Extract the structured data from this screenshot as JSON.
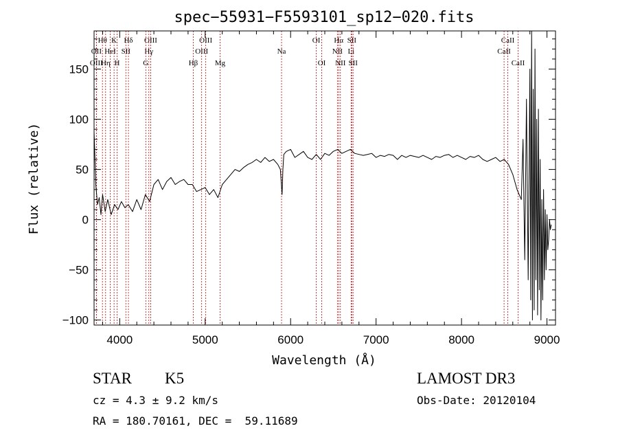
{
  "chart_data": {
    "type": "line",
    "title": "spec−55931−F5593101_sp12−020.fits",
    "xlabel": "Wavelength (Å)",
    "ylabel": "Flux (relative)",
    "xlim": [
      3700,
      9100
    ],
    "ylim": [
      -105,
      188
    ],
    "xticks": [
      4000,
      5000,
      6000,
      7000,
      8000,
      9000
    ],
    "yticks": [
      -100,
      -50,
      0,
      50,
      100,
      150
    ],
    "ytick_labels": [
      "−100",
      "−50",
      "0",
      "50",
      "100",
      "150"
    ],
    "grid": false,
    "line_color": "#000000",
    "marker_color": "#cc0000",
    "series": [
      {
        "x": [
          3700,
          3720,
          3740,
          3760,
          3780,
          3800,
          3830,
          3860,
          3900,
          3940,
          3980,
          4020,
          4060,
          4100,
          4150,
          4200,
          4250,
          4300,
          4350,
          4400,
          4450,
          4500,
          4550,
          4600,
          4650,
          4700,
          4750,
          4800,
          4850,
          4900,
          4950,
          5000,
          5050,
          5100,
          5150,
          5200,
          5250,
          5300,
          5350,
          5400,
          5450,
          5500,
          5550,
          5600,
          5650,
          5700,
          5750,
          5800,
          5850,
          5880,
          5900,
          5910,
          5920,
          5950,
          6000,
          6050,
          6100,
          6150,
          6200,
          6250,
          6300,
          6350,
          6400,
          6450,
          6500,
          6550,
          6600,
          6650,
          6700,
          6750,
          6800,
          6850,
          6900,
          6950,
          7000,
          7050,
          7100,
          7150,
          7200,
          7250,
          7300,
          7350,
          7400,
          7450,
          7500,
          7550,
          7600,
          7650,
          7700,
          7750,
          7800,
          7850,
          7900,
          7950,
          8000,
          8050,
          8100,
          8150,
          8200,
          8250,
          8300,
          8350,
          8400,
          8450,
          8500,
          8550,
          8600,
          8650,
          8700,
          8720,
          8740,
          8760,
          8780,
          8800,
          8810,
          8820,
          8830,
          8840,
          8850,
          8860,
          8870,
          8880,
          8890,
          8900,
          8910,
          8920,
          8930,
          8940,
          8950,
          8960,
          8970,
          8980,
          8990,
          9000,
          9010,
          9020,
          9030,
          9040,
          9050
        ],
        "y": [
          88,
          35,
          15,
          22,
          5,
          25,
          8,
          20,
          5,
          15,
          10,
          18,
          12,
          15,
          8,
          20,
          10,
          25,
          18,
          35,
          40,
          30,
          38,
          42,
          35,
          38,
          40,
          35,
          35,
          28,
          30,
          32,
          25,
          30,
          22,
          35,
          40,
          45,
          50,
          48,
          52,
          55,
          57,
          60,
          57,
          62,
          58,
          60,
          55,
          50,
          25,
          50,
          65,
          68,
          70,
          62,
          65,
          68,
          62,
          60,
          65,
          60,
          66,
          64,
          68,
          70,
          66,
          68,
          70,
          66,
          65,
          64,
          65,
          66,
          62,
          64,
          63,
          65,
          64,
          60,
          64,
          62,
          64,
          63,
          62,
          64,
          62,
          60,
          63,
          62,
          64,
          65,
          62,
          64,
          62,
          60,
          63,
          62,
          64,
          60,
          58,
          60,
          62,
          58,
          60,
          55,
          45,
          30,
          20,
          80,
          -40,
          120,
          -60,
          150,
          -80,
          190,
          -100,
          130,
          -90,
          170,
          -60,
          100,
          -95,
          110,
          -70,
          60,
          -100,
          20,
          -80,
          30,
          -60,
          10,
          -50,
          5,
          -30,
          -20,
          0,
          -10,
          -5
        ]
      }
    ],
    "line_markers": [
      {
        "label": "Hθ",
        "x": 3798,
        "row": 1
      },
      {
        "label": "OII",
        "x": 3727,
        "row": 2
      },
      {
        "label": "OIII",
        "x": 3727,
        "row": 3
      },
      {
        "label": "Hη",
        "x": 3835,
        "row": 3
      },
      {
        "label": "K",
        "x": 3934,
        "row": 1
      },
      {
        "label": "H",
        "x": 3969,
        "row": 3
      },
      {
        "label": "HeI",
        "x": 3889,
        "row": 2
      },
      {
        "label": "SII",
        "x": 4072,
        "row": 2
      },
      {
        "label": "Hδ",
        "x": 4102,
        "row": 1
      },
      {
        "label": "OIII",
        "x": 4363,
        "row": 1
      },
      {
        "label": "Hγ",
        "x": 4341,
        "row": 2
      },
      {
        "label": "G",
        "x": 4305,
        "row": 3
      },
      {
        "label": "OIII",
        "x": 5007,
        "row": 1
      },
      {
        "label": "OIII",
        "x": 4959,
        "row": 2
      },
      {
        "label": "Hβ",
        "x": 4861,
        "row": 3
      },
      {
        "label": "Mg",
        "x": 5175,
        "row": 3
      },
      {
        "label": "Na",
        "x": 5894,
        "row": 2
      },
      {
        "label": "OI",
        "x": 6300,
        "row": 1
      },
      {
        "label": "OI",
        "x": 6364,
        "row": 3
      },
      {
        "label": "Hα",
        "x": 6563,
        "row": 1
      },
      {
        "label": "SII",
        "x": 6716,
        "row": 1
      },
      {
        "label": "NII",
        "x": 6548,
        "row": 2
      },
      {
        "label": "Li",
        "x": 6708,
        "row": 2
      },
      {
        "label": "NII",
        "x": 6583,
        "row": 3
      },
      {
        "label": "SII",
        "x": 6731,
        "row": 3
      },
      {
        "label": "CaII",
        "x": 8542,
        "row": 1
      },
      {
        "label": "CaII",
        "x": 8498,
        "row": 2
      },
      {
        "label": "CaII",
        "x": 8662,
        "row": 3
      }
    ]
  },
  "info": {
    "object_class": "STAR",
    "subclass": "K5",
    "redshift_text": "cz = 4.3 ± 9.2 km/s",
    "coords_text": "RA = 180.70161, DEC =  59.11689",
    "survey": "LAMOST DR3",
    "obs_date_text": "Obs-Date: 20120104"
  }
}
